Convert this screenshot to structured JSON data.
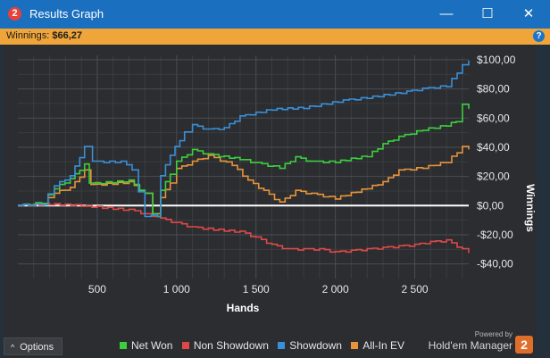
{
  "window": {
    "title": "Results Graph",
    "app_icon_glyph": "2",
    "minimize_glyph": "—",
    "maximize_glyph": "☐",
    "close_glyph": "✕"
  },
  "winnings_bar": {
    "label": "Winnings:",
    "value": "$66,27",
    "help_glyph": "?"
  },
  "chart_data": {
    "type": "line",
    "xlabel": "Hands",
    "ylabel": "Winnings",
    "xlim": [
      0,
      2840
    ],
    "ylim": [
      -50,
      103
    ],
    "x_ticks": [
      500,
      1000,
      1500,
      2000,
      2500
    ],
    "x_tick_labels": [
      "500",
      "1 000",
      "1 500",
      "2 000",
      "2 500"
    ],
    "y_ticks": [
      -40,
      -20,
      0,
      20,
      40,
      60,
      80,
      100
    ],
    "y_tick_labels": [
      "-$40,00",
      "-$20,00",
      "$0,00",
      "$20,00",
      "$40,00",
      "$60,00",
      "$80,00",
      "$100,00"
    ],
    "grid": true,
    "zero_line": true,
    "legend_position": "bottom",
    "series": [
      {
        "name": "Net Won",
        "color": "#3ccf3c",
        "points": [
          [
            0,
            0
          ],
          [
            150,
            2
          ],
          [
            230,
            12
          ],
          [
            330,
            18
          ],
          [
            420,
            28
          ],
          [
            450,
            15
          ],
          [
            700,
            17
          ],
          [
            800,
            8
          ],
          [
            850,
            -6
          ],
          [
            880,
            -8
          ],
          [
            900,
            10
          ],
          [
            960,
            22
          ],
          [
            1000,
            30
          ],
          [
            1100,
            38
          ],
          [
            1200,
            35
          ],
          [
            1400,
            32
          ],
          [
            1500,
            29
          ],
          [
            1650,
            26
          ],
          [
            1750,
            33
          ],
          [
            1850,
            30
          ],
          [
            2000,
            30
          ],
          [
            2200,
            34
          ],
          [
            2300,
            42
          ],
          [
            2400,
            47
          ],
          [
            2550,
            52
          ],
          [
            2700,
            55
          ],
          [
            2760,
            58
          ],
          [
            2800,
            69
          ],
          [
            2840,
            66
          ]
        ]
      },
      {
        "name": "Non Showdown",
        "color": "#e04848",
        "points": [
          [
            0,
            0
          ],
          [
            200,
            1
          ],
          [
            400,
            0
          ],
          [
            600,
            -2
          ],
          [
            700,
            -3
          ],
          [
            850,
            -7
          ],
          [
            900,
            -9
          ],
          [
            1000,
            -12
          ],
          [
            1100,
            -15
          ],
          [
            1300,
            -17
          ],
          [
            1400,
            -18
          ],
          [
            1500,
            -22
          ],
          [
            1600,
            -27
          ],
          [
            1700,
            -30
          ],
          [
            1800,
            -30
          ],
          [
            1900,
            -30
          ],
          [
            2000,
            -32
          ],
          [
            2100,
            -31
          ],
          [
            2200,
            -30
          ],
          [
            2300,
            -29
          ],
          [
            2400,
            -28
          ],
          [
            2500,
            -27
          ],
          [
            2600,
            -25
          ],
          [
            2700,
            -24
          ],
          [
            2800,
            -30
          ],
          [
            2840,
            -33
          ]
        ]
      },
      {
        "name": "Showdown",
        "color": "#3a8fd8",
        "points": [
          [
            0,
            0
          ],
          [
            150,
            1
          ],
          [
            230,
            14
          ],
          [
            330,
            20
          ],
          [
            420,
            40
          ],
          [
            470,
            30
          ],
          [
            650,
            30
          ],
          [
            720,
            25
          ],
          [
            800,
            -7
          ],
          [
            880,
            -7
          ],
          [
            900,
            20
          ],
          [
            960,
            35
          ],
          [
            1050,
            50
          ],
          [
            1100,
            55
          ],
          [
            1200,
            52
          ],
          [
            1300,
            53
          ],
          [
            1400,
            61
          ],
          [
            1600,
            66
          ],
          [
            1800,
            67
          ],
          [
            1950,
            70
          ],
          [
            2050,
            72
          ],
          [
            2200,
            74
          ],
          [
            2450,
            78
          ],
          [
            2550,
            80
          ],
          [
            2700,
            82
          ],
          [
            2800,
            96
          ],
          [
            2840,
            99
          ]
        ]
      },
      {
        "name": "All-In EV",
        "color": "#e8933a",
        "points": [
          [
            0,
            0
          ],
          [
            150,
            1
          ],
          [
            230,
            9
          ],
          [
            330,
            12
          ],
          [
            420,
            24
          ],
          [
            460,
            14
          ],
          [
            700,
            16
          ],
          [
            800,
            8
          ],
          [
            850,
            -6
          ],
          [
            880,
            -6
          ],
          [
            900,
            5
          ],
          [
            960,
            16
          ],
          [
            1000,
            25
          ],
          [
            1100,
            30
          ],
          [
            1200,
            34
          ],
          [
            1350,
            28
          ],
          [
            1450,
            17
          ],
          [
            1550,
            10
          ],
          [
            1650,
            2
          ],
          [
            1750,
            10
          ],
          [
            1850,
            8
          ],
          [
            2000,
            5
          ],
          [
            2200,
            12
          ],
          [
            2300,
            16
          ],
          [
            2400,
            24
          ],
          [
            2550,
            26
          ],
          [
            2700,
            30
          ],
          [
            2800,
            40
          ],
          [
            2840,
            38
          ]
        ]
      }
    ]
  },
  "footer": {
    "options_label": "Options",
    "options_glyph": "^",
    "legend": [
      {
        "label": "Net Won",
        "color": "#3ccf3c"
      },
      {
        "label": "Non Showdown",
        "color": "#e04848"
      },
      {
        "label": "Showdown",
        "color": "#3a8fd8"
      },
      {
        "label": "All-In EV",
        "color": "#e8933a"
      }
    ],
    "brand_powered": "Powered by",
    "brand_name": "Hold'em Manager",
    "brand_logo_glyph": "2"
  }
}
